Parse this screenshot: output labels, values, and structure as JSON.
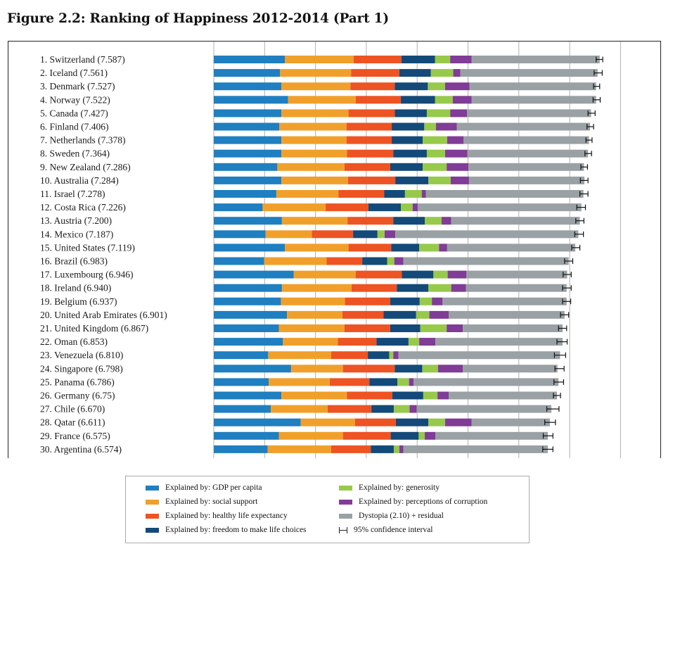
{
  "title": "Figure 2.2: Ranking of Happiness 2012-2014 (Part 1)",
  "colors": {
    "gdp": "#1f7fc0",
    "social": "#f0a02a",
    "health": "#ee5323",
    "freedom": "#134a79",
    "generosity": "#97c94b",
    "corruption": "#803c96",
    "dystopia": "#9aa1a5",
    "grid": "#b0b0b0"
  },
  "legend": [
    {
      "key": "gdp",
      "label": "Explained by: GDP per capita"
    },
    {
      "key": "generosity",
      "label": "Explained by: generosity"
    },
    {
      "key": "social",
      "label": "Explained by: social support"
    },
    {
      "key": "corruption",
      "label": "Explained by: perceptions of corruption"
    },
    {
      "key": "health",
      "label": "Explained by: healthy life expectancy"
    },
    {
      "key": "dystopia",
      "label": "Dystopia (2.10) + residual"
    },
    {
      "key": "freedom",
      "label": "Explained by: freedom to make life choices"
    },
    {
      "key": "ci",
      "label": "95% confidence interval"
    }
  ],
  "chart_data": {
    "type": "bar",
    "orientation": "horizontal",
    "stacked": true,
    "title": "Figure 2.2: Ranking of Happiness 2012-2014 (Part 1)",
    "xlim": [
      0,
      8
    ],
    "grid": true,
    "legend_position": "bottom",
    "series_order": [
      "gdp",
      "social",
      "health",
      "freedom",
      "generosity",
      "corruption",
      "dystopia"
    ],
    "categories": [
      "1. Switzerland (7.587)",
      "2. Iceland (7.561)",
      "3. Denmark (7.527)",
      "4. Norway (7.522)",
      "5. Canada (7.427)",
      "6. Finland (7.406)",
      "7. Netherlands (7.378)",
      "8. Sweden (7.364)",
      "9. New Zealand (7.286)",
      "10. Australia (7.284)",
      "11. Israel (7.278)",
      "12. Costa Rica (7.226)",
      "13. Austria (7.200)",
      "14. Mexico (7.187)",
      "15. United States (7.119)",
      "16. Brazil (6.983)",
      "17. Luxembourg (6.946)",
      "18. Ireland (6.940)",
      "19. Belgium (6.937)",
      "20. United Arab Emirates (6.901)",
      "21. United Kingdom (6.867)",
      "22. Oman (6.853)",
      "23. Venezuela (6.810)",
      "24. Singapore (6.798)",
      "25. Panama (6.786)",
      "26. Germany (6.75)",
      "27. Chile (6.670)",
      "28. Qatar (6.611)",
      "29. France (6.575)",
      "30. Argentina (6.574)"
    ],
    "bars": [
      {
        "values": [
          1.4,
          1.35,
          0.94,
          0.66,
          0.3,
          0.42,
          2.52
        ],
        "ci": [
          7.52,
          7.65
        ]
      },
      {
        "values": [
          1.3,
          1.4,
          0.95,
          0.62,
          0.44,
          0.14,
          2.7
        ],
        "ci": [
          7.48,
          7.64
        ]
      },
      {
        "values": [
          1.33,
          1.36,
          0.87,
          0.65,
          0.34,
          0.48,
          2.49
        ],
        "ci": [
          7.47,
          7.59
        ]
      },
      {
        "values": [
          1.46,
          1.33,
          0.89,
          0.67,
          0.35,
          0.37,
          2.45
        ],
        "ci": [
          7.46,
          7.6
        ]
      },
      {
        "values": [
          1.33,
          1.32,
          0.91,
          0.63,
          0.46,
          0.33,
          2.44
        ],
        "ci": [
          7.36,
          7.5
        ]
      },
      {
        "values": [
          1.29,
          1.32,
          0.89,
          0.64,
          0.23,
          0.41,
          2.62
        ],
        "ci": [
          7.34,
          7.47
        ]
      },
      {
        "values": [
          1.33,
          1.28,
          0.89,
          0.61,
          0.48,
          0.32,
          2.47
        ],
        "ci": [
          7.32,
          7.44
        ]
      },
      {
        "values": [
          1.33,
          1.29,
          0.91,
          0.66,
          0.36,
          0.44,
          2.37
        ],
        "ci": [
          7.3,
          7.43
        ]
      },
      {
        "values": [
          1.25,
          1.32,
          0.9,
          0.64,
          0.47,
          0.43,
          2.27
        ],
        "ci": [
          7.22,
          7.35
        ]
      },
      {
        "values": [
          1.33,
          1.31,
          0.93,
          0.65,
          0.44,
          0.36,
          2.27
        ],
        "ci": [
          7.21,
          7.36
        ]
      },
      {
        "values": [
          1.23,
          1.22,
          0.9,
          0.41,
          0.33,
          0.08,
          3.1
        ],
        "ci": [
          7.2,
          7.36
        ]
      },
      {
        "values": [
          0.96,
          1.24,
          0.84,
          0.64,
          0.23,
          0.1,
          3.22
        ],
        "ci": [
          7.14,
          7.31
        ]
      },
      {
        "values": [
          1.34,
          1.29,
          0.9,
          0.62,
          0.33,
          0.19,
          2.53
        ],
        "ci": [
          7.12,
          7.28
        ]
      },
      {
        "values": [
          1.02,
          0.91,
          0.81,
          0.48,
          0.14,
          0.21,
          3.6
        ],
        "ci": [
          7.1,
          7.27
        ]
      },
      {
        "values": [
          1.4,
          1.25,
          0.84,
          0.55,
          0.39,
          0.16,
          2.52
        ],
        "ci": [
          7.04,
          7.2
        ]
      },
      {
        "values": [
          0.99,
          1.23,
          0.7,
          0.49,
          0.14,
          0.18,
          3.25
        ],
        "ci": [
          6.9,
          7.06
        ]
      },
      {
        "values": [
          1.57,
          1.22,
          0.91,
          0.62,
          0.28,
          0.37,
          1.98
        ],
        "ci": [
          6.87,
          7.03
        ]
      },
      {
        "values": [
          1.34,
          1.37,
          0.89,
          0.62,
          0.45,
          0.29,
          1.98
        ],
        "ci": [
          6.86,
          7.03
        ]
      },
      {
        "values": [
          1.32,
          1.26,
          0.89,
          0.58,
          0.24,
          0.21,
          2.44
        ],
        "ci": [
          6.86,
          7.02
        ]
      },
      {
        "values": [
          1.44,
          1.09,
          0.81,
          0.64,
          0.26,
          0.38,
          2.28
        ],
        "ci": [
          6.82,
          6.98
        ]
      },
      {
        "values": [
          1.28,
          1.29,
          0.9,
          0.59,
          0.52,
          0.32,
          1.96
        ],
        "ci": [
          6.78,
          6.94
        ]
      },
      {
        "values": [
          1.36,
          1.08,
          0.76,
          0.63,
          0.21,
          0.32,
          2.5
        ],
        "ci": [
          6.75,
          6.95
        ]
      },
      {
        "values": [
          1.07,
          1.24,
          0.72,
          0.42,
          0.08,
          0.1,
          3.18
        ],
        "ci": [
          6.7,
          6.92
        ]
      },
      {
        "values": [
          1.52,
          1.02,
          1.02,
          0.54,
          0.31,
          0.49,
          1.86
        ],
        "ci": [
          6.71,
          6.89
        ]
      },
      {
        "values": [
          1.08,
          1.2,
          0.78,
          0.55,
          0.23,
          0.09,
          2.85
        ],
        "ci": [
          6.69,
          6.88
        ]
      },
      {
        "values": [
          1.33,
          1.29,
          0.89,
          0.61,
          0.28,
          0.22,
          2.13
        ],
        "ci": [
          6.68,
          6.82
        ]
      },
      {
        "values": [
          1.12,
          1.12,
          0.86,
          0.44,
          0.31,
          0.14,
          2.65
        ],
        "ci": [
          6.55,
          6.79
        ]
      },
      {
        "values": [
          1.71,
          1.07,
          0.8,
          0.64,
          0.33,
          0.52,
          1.54
        ],
        "ci": [
          6.51,
          6.72
        ]
      },
      {
        "values": [
          1.28,
          1.26,
          0.94,
          0.55,
          0.12,
          0.21,
          2.21
        ],
        "ci": [
          6.48,
          6.67
        ]
      },
      {
        "values": [
          1.06,
          1.25,
          0.78,
          0.45,
          0.11,
          0.08,
          2.84
        ],
        "ci": [
          6.47,
          6.67
        ]
      }
    ]
  }
}
